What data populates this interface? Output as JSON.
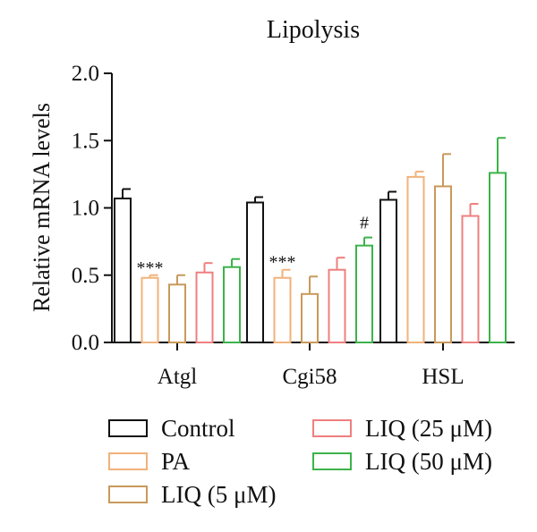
{
  "chart_data": {
    "type": "bar",
    "title": "Lipolysis",
    "xlabel": "",
    "ylabel": "Relative mRNA levels",
    "ylim": [
      0,
      2.0
    ],
    "yticks": [
      "0.0",
      "0.5",
      "1.0",
      "1.5",
      "2.0"
    ],
    "ytick_values": [
      0,
      0.5,
      1.0,
      1.5,
      2.0
    ],
    "grid": false,
    "legend_position": "bottom",
    "categories": [
      "Atgl",
      "Cgi58",
      "HSL"
    ],
    "series": [
      {
        "name": "Control",
        "color": "#111111",
        "values": [
          1.07,
          1.04,
          1.06
        ],
        "errors": [
          0.07,
          0.04,
          0.06
        ]
      },
      {
        "name": "PA",
        "color": "#f2b27a",
        "values": [
          0.48,
          0.48,
          1.23
        ],
        "errors": [
          0.02,
          0.06,
          0.04
        ]
      },
      {
        "name": "LIQ (5 μM)",
        "color": "#c9995a",
        "values": [
          0.43,
          0.36,
          1.16
        ],
        "errors": [
          0.07,
          0.13,
          0.24
        ]
      },
      {
        "name": "LIQ (25 μM)",
        "color": "#ef7f7f",
        "values": [
          0.52,
          0.54,
          0.94
        ],
        "errors": [
          0.07,
          0.09,
          0.09
        ]
      },
      {
        "name": "LIQ (50 μM)",
        "color": "#3cb34a",
        "values": [
          0.56,
          0.72,
          1.26
        ],
        "errors": [
          0.06,
          0.06,
          0.26
        ]
      }
    ],
    "annotations": [
      {
        "text": "***",
        "category": 0,
        "series": 1
      },
      {
        "text": "***",
        "category": 1,
        "series": 1
      },
      {
        "text": "#",
        "category": 1,
        "series": 4
      }
    ]
  }
}
